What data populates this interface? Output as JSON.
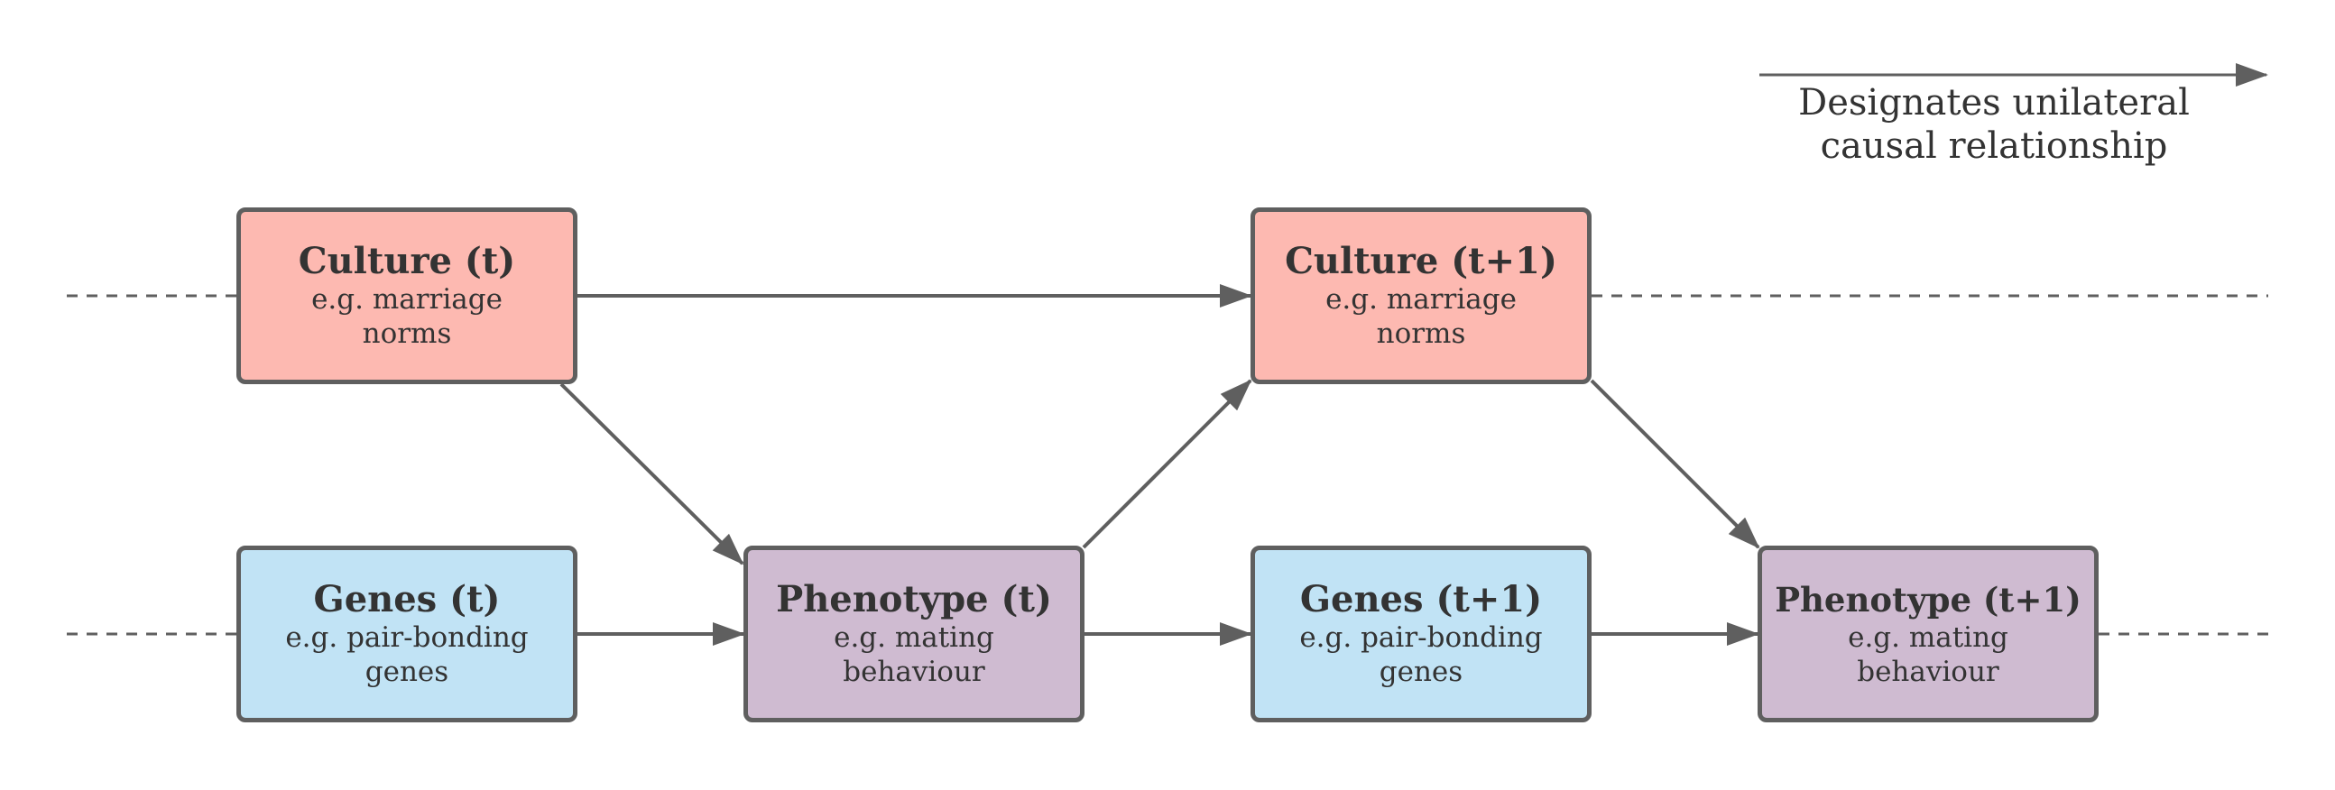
{
  "colors": {
    "culture_fill": "#fdb9b1",
    "genes_fill": "#c1e3f5",
    "phenotype_fill": "#cfbbd1",
    "border": "#5f5f5f",
    "arrow": "#5f5f5f",
    "text": "#333333"
  },
  "nodes": {
    "culture_t": {
      "title": "Culture (t)",
      "example": "e.g. marriage norms"
    },
    "culture_t1": {
      "title": "Culture (t+1)",
      "example": "e.g. marriage norms"
    },
    "genes_t": {
      "title": "Genes (t)",
      "example": "e.g. pair-bonding genes"
    },
    "phenotype_t": {
      "title": "Phenotype (t)",
      "example": "e.g. mating behaviour"
    },
    "genes_t1": {
      "title": "Genes (t+1)",
      "example": "e.g. pair-bonding genes"
    },
    "phenotype_t1": {
      "title": "Phenotype (t+1)",
      "example": "e.g. mating behaviour"
    }
  },
  "legend": {
    "label": "Designates unilateral causal relationship"
  }
}
